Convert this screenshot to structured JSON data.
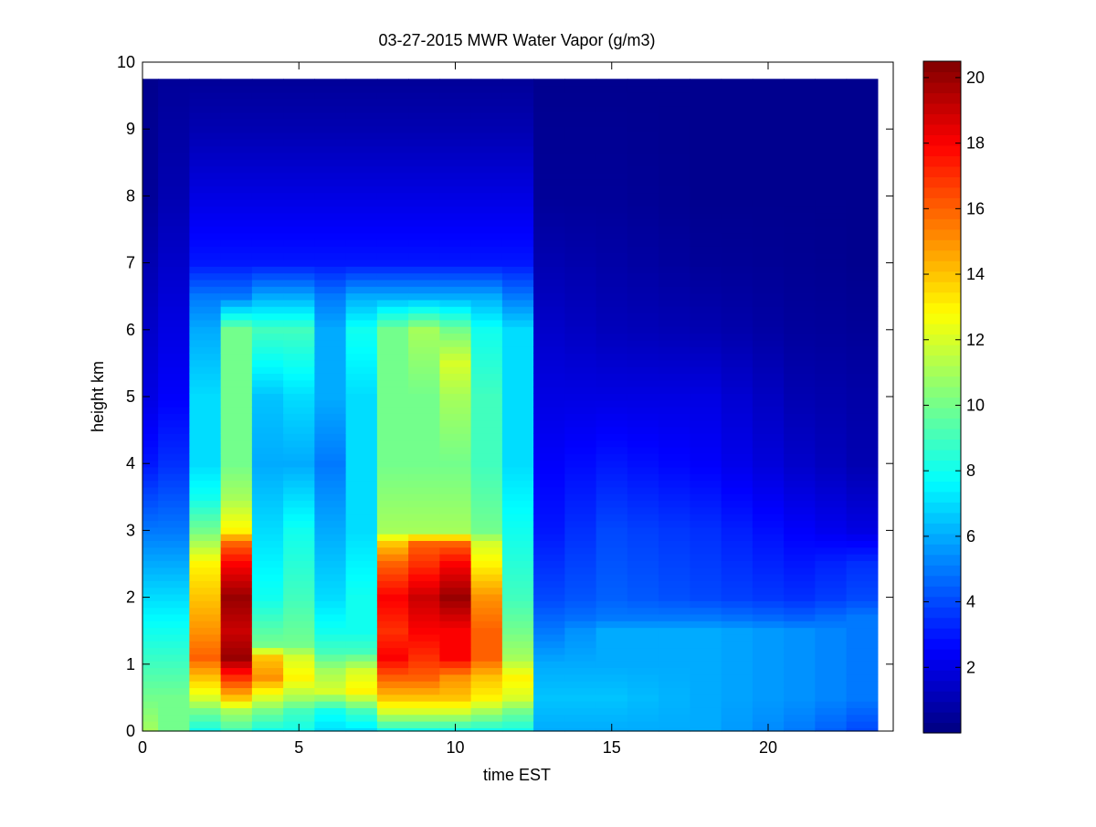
{
  "chart_data": {
    "type": "heatmap",
    "title": "03-27-2015 MWR Water Vapor (g/m3)",
    "xlabel": "time EST",
    "ylabel": "height km",
    "xlim": [
      0,
      24
    ],
    "ylim": [
      0,
      10
    ],
    "xticks": [
      0,
      5,
      10,
      15,
      20
    ],
    "yticks": [
      0,
      1,
      2,
      3,
      4,
      5,
      6,
      7,
      8,
      9,
      10
    ],
    "colorbar": {
      "min": 0,
      "max": 20.5,
      "ticks": [
        2,
        4,
        6,
        8,
        10,
        12,
        14,
        16,
        18,
        20
      ],
      "colormap": "jet"
    },
    "grid": false,
    "x": [
      0,
      1,
      2,
      3,
      4,
      5,
      6,
      7,
      8,
      9,
      10,
      11,
      12,
      13,
      14,
      15,
      16,
      17,
      18,
      19,
      20,
      21,
      22,
      23
    ],
    "data_x_max": 23.5,
    "heights_km": [
      0.0,
      0.1,
      0.2,
      0.3,
      0.4,
      0.5,
      0.6,
      0.7,
      0.8,
      0.9,
      1.0,
      1.1,
      1.2,
      1.3,
      1.4,
      1.5,
      1.6,
      1.7,
      1.8,
      1.9,
      2.0,
      2.1,
      2.2,
      2.3,
      2.4,
      2.5,
      2.6,
      2.7,
      2.8,
      2.9,
      3.0,
      3.1,
      3.2,
      3.3,
      3.4,
      3.5,
      3.6,
      3.7,
      3.8,
      3.9,
      4.0,
      4.1,
      4.2,
      4.3,
      4.4,
      4.5,
      4.6,
      4.7,
      4.8,
      4.9,
      5.0,
      5.1,
      5.2,
      5.3,
      5.4,
      5.5,
      5.6,
      5.7,
      5.8,
      5.9,
      6.0,
      6.1,
      6.2,
      6.3,
      6.4,
      6.5,
      6.6,
      6.7,
      6.8,
      6.9,
      7.0,
      7.1,
      7.2,
      7.3,
      7.4,
      7.5,
      7.6,
      7.7,
      7.8,
      7.9,
      8.0,
      8.1,
      8.2,
      8.3,
      8.4,
      8.5,
      8.6,
      8.7,
      8.8,
      8.9,
      9.0,
      9.1,
      9.2,
      9.3,
      9.4,
      9.5,
      9.6,
      9.7,
      9.75
    ],
    "profile_anchors": [
      {
        "x": 0,
        "h": [
          0,
          0.5,
          1,
          1.5,
          2,
          3,
          4,
          5,
          6,
          7,
          8,
          9.75
        ],
        "v": [
          11,
          10,
          9,
          8,
          7,
          5,
          3,
          2,
          1.5,
          1,
          0.5,
          0.3
        ]
      },
      {
        "x": 1,
        "h": [
          0,
          0.5,
          1,
          1.5,
          2,
          3,
          4,
          5,
          6,
          7,
          8,
          9.75
        ],
        "v": [
          10,
          10,
          9,
          8,
          7,
          5,
          3.5,
          2.5,
          2,
          1.5,
          1,
          0.5
        ]
      },
      {
        "x": 2,
        "h": [
          0,
          0.3,
          0.5,
          0.8,
          1.1,
          1.5,
          2,
          2.5,
          3,
          3.5,
          4,
          5,
          6,
          6.5,
          7,
          8,
          9,
          9.75
        ],
        "v": [
          8,
          10,
          12,
          14,
          16,
          15,
          14,
          13,
          10,
          8,
          7,
          7,
          6,
          5,
          3,
          2,
          1,
          0.5
        ]
      },
      {
        "x": 3,
        "h": [
          0,
          0.3,
          0.5,
          0.8,
          1.1,
          1.5,
          2,
          2.5,
          2.8,
          3,
          3.5,
          4,
          5,
          6,
          6.5,
          7,
          8,
          9,
          9.75
        ],
        "v": [
          9,
          11,
          14,
          17,
          20,
          19,
          20,
          18,
          16,
          13,
          11,
          10,
          10,
          10,
          5,
          3,
          2,
          1,
          0.5
        ]
      },
      {
        "x": 4,
        "h": [
          0,
          0.3,
          0.5,
          0.8,
          1.1,
          1.3,
          2,
          3,
          4,
          5,
          6,
          6.5,
          7,
          8,
          9,
          9.75
        ],
        "v": [
          8,
          10,
          12,
          15,
          14,
          10,
          8,
          7,
          6,
          6.5,
          9,
          6,
          3,
          2,
          1,
          0.5
        ]
      },
      {
        "x": 5,
        "h": [
          0,
          0.3,
          0.5,
          0.8,
          1.1,
          1.3,
          2,
          3,
          4,
          5,
          6,
          6.5,
          7,
          8,
          9,
          9.75
        ],
        "v": [
          8,
          9,
          11,
          13,
          12,
          10,
          9,
          8,
          6,
          7,
          9,
          6,
          3,
          2,
          1,
          0.5
        ]
      },
      {
        "x": 6,
        "h": [
          0,
          0.3,
          0.6,
          0.9,
          1.2,
          1.5,
          2,
          3,
          4,
          5,
          6,
          6.5,
          7,
          8,
          9,
          9.75
        ],
        "v": [
          7,
          8,
          12,
          11,
          9,
          8,
          7,
          6,
          5,
          6,
          6,
          5,
          3,
          2,
          1,
          0.5
        ]
      },
      {
        "x": 7,
        "h": [
          0,
          0.3,
          0.6,
          0.9,
          1.2,
          1.5,
          2,
          3,
          4,
          5,
          6,
          6.5,
          7,
          8,
          9,
          9.75
        ],
        "v": [
          7,
          9,
          13,
          12,
          9,
          8,
          8,
          7,
          7,
          7,
          8,
          6,
          3,
          2,
          1,
          0.5
        ]
      },
      {
        "x": 8,
        "h": [
          0,
          0.3,
          0.5,
          0.8,
          1.1,
          1.5,
          2,
          2.5,
          2.8,
          3,
          4,
          5,
          6,
          6.5,
          7,
          8,
          9,
          9.75
        ],
        "v": [
          8,
          12,
          14,
          16,
          18,
          17,
          18,
          16,
          14,
          11,
          10,
          10,
          10,
          6,
          3,
          2,
          1,
          0.5
        ]
      },
      {
        "x": 9,
        "h": [
          0,
          0.3,
          0.5,
          0.8,
          1.1,
          1.5,
          2,
          2.5,
          2.8,
          3,
          4,
          5,
          6,
          6.5,
          7,
          8,
          9,
          9.75
        ],
        "v": [
          8,
          12,
          14,
          16,
          17,
          18,
          19,
          17,
          16,
          11,
          10,
          10,
          11,
          6,
          3,
          2,
          1,
          0.5
        ]
      },
      {
        "x": 10,
        "h": [
          0,
          0.3,
          0.5,
          0.8,
          1.1,
          1.5,
          2,
          2.5,
          2.8,
          3,
          4,
          5,
          5.5,
          6,
          6.5,
          7,
          8,
          9,
          9.75
        ],
        "v": [
          8,
          12,
          14,
          15,
          18,
          18,
          20,
          18,
          16,
          11,
          10,
          11,
          12,
          10,
          6,
          3,
          2,
          1,
          0.5
        ]
      },
      {
        "x": 11,
        "h": [
          0,
          0.3,
          0.5,
          0.8,
          1.1,
          1.5,
          2,
          2.5,
          2.8,
          3,
          4,
          5,
          6,
          6.5,
          7,
          8,
          9,
          9.75
        ],
        "v": [
          8,
          11,
          13,
          14,
          16,
          16,
          15,
          13,
          12,
          10,
          9,
          9,
          8,
          6,
          3,
          2,
          1,
          0.5
        ]
      },
      {
        "x": 12,
        "h": [
          0,
          0.3,
          0.5,
          0.8,
          1.1,
          1.5,
          2,
          3,
          4,
          5,
          6,
          6.5,
          7,
          8,
          9,
          9.75
        ],
        "v": [
          8,
          10,
          12,
          13,
          11,
          10,
          9,
          8,
          7,
          7,
          7,
          5,
          3,
          2,
          1,
          0.5
        ]
      },
      {
        "x": 13,
        "h": [
          0,
          0.5,
          1,
          1.5,
          2,
          3,
          4,
          5,
          6,
          7,
          8,
          9.75
        ],
        "v": [
          6,
          6.5,
          6,
          5,
          4,
          3,
          2.5,
          2,
          1.5,
          1,
          0.5,
          0.3
        ]
      },
      {
        "x": 15,
        "h": [
          0,
          0.5,
          1,
          1.5,
          1.7,
          2,
          3,
          4,
          5,
          6,
          7,
          8,
          9.75
        ],
        "v": [
          6,
          6.5,
          6,
          6,
          5,
          4.5,
          4,
          3,
          2,
          1.2,
          0.8,
          0.5,
          0.3
        ]
      },
      {
        "x": 18,
        "h": [
          0,
          0.5,
          1,
          1.5,
          1.7,
          2,
          3,
          4,
          5,
          6,
          7,
          8,
          9.75
        ],
        "v": [
          6,
          6,
          6,
          6,
          5,
          4,
          3.5,
          2.5,
          2,
          1,
          0.5,
          0.3,
          0.3
        ]
      },
      {
        "x": 21,
        "h": [
          0,
          0.5,
          1,
          1.5,
          1.7,
          2,
          3,
          4,
          5,
          6,
          7,
          8,
          9.75
        ],
        "v": [
          5,
          5.5,
          5.5,
          5.5,
          4.5,
          3.5,
          2.5,
          1.5,
          1,
          0.6,
          0.4,
          0.3,
          0.3
        ]
      },
      {
        "x": 23,
        "h": [
          0,
          0.5,
          1,
          1.5,
          1.7,
          2,
          2.5,
          3,
          4,
          5,
          6,
          7,
          8,
          9.75
        ],
        "v": [
          4,
          5,
          5,
          5,
          5,
          4,
          3.5,
          2,
          1,
          0.8,
          0.5,
          0.3,
          0.3,
          0.3
        ]
      }
    ]
  }
}
